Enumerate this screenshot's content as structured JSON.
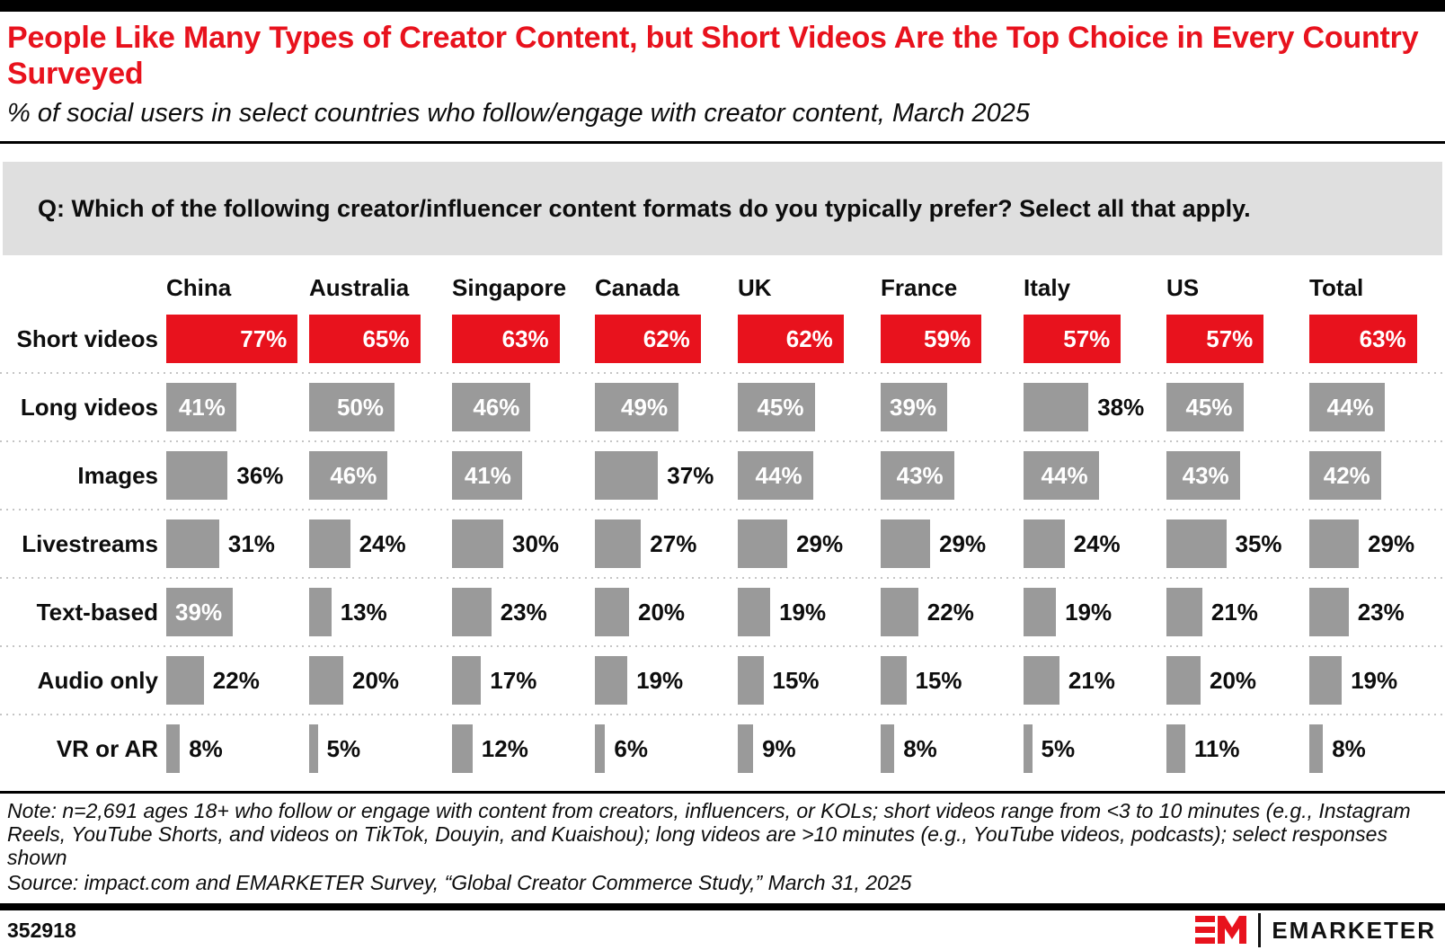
{
  "page": {
    "title": "People Like Many Types of Creator Content, but Short Videos Are the Top Choice in Every Country Surveyed",
    "subtitle": "% of social users in select countries who follow/engage with creator content, March 2025",
    "question": "Q: Which of the following creator/influencer content formats do you typically prefer? Select all that apply.",
    "note": "Note: n=2,691 ages 18+ who follow or engage with content from creators, influencers, or KOLs; short videos range from <3 to 10 minutes (e.g., Instagram Reels, YouTube Shorts, and videos on TikTok, Douyin, and Kuaishou); long videos are >10 minutes (e.g., YouTube videos, podcasts); select responses shown",
    "source": "Source: impact.com and EMARKETER Survey, “Global Creator Commerce Study,” March 31, 2025",
    "chart_id": "352918",
    "brand": "EMARKETER"
  },
  "colors": {
    "accent_red": "#E8121D",
    "bar_gray": "#9A9A9A",
    "question_bg": "#DFDFDF",
    "separator_gray": "#C5C5C5",
    "text_black": "#0D0D0D"
  },
  "chart_data": {
    "type": "bar",
    "orientation": "horizontal",
    "unit": "%",
    "title": "People Like Many Types of Creator Content, but Short Videos Are the Top Choice in Every Country Surveyed",
    "subtitle": "% of social users in select countries who follow/engage with creator content, March 2025",
    "categories": [
      "China",
      "Australia",
      "Singapore",
      "Canada",
      "UK",
      "France",
      "Italy",
      "US",
      "Total"
    ],
    "rows": [
      {
        "label": "Short videos",
        "highlight": true,
        "values": [
          77,
          65,
          63,
          62,
          62,
          59,
          57,
          57,
          63
        ]
      },
      {
        "label": "Long videos",
        "highlight": false,
        "values": [
          41,
          50,
          46,
          49,
          45,
          39,
          38,
          45,
          44
        ]
      },
      {
        "label": "Images",
        "highlight": false,
        "values": [
          36,
          46,
          41,
          37,
          44,
          43,
          44,
          43,
          42
        ]
      },
      {
        "label": "Livestreams",
        "highlight": false,
        "values": [
          31,
          24,
          30,
          27,
          29,
          29,
          24,
          35,
          29
        ]
      },
      {
        "label": "Text-based",
        "highlight": false,
        "values": [
          39,
          13,
          23,
          20,
          19,
          22,
          19,
          21,
          23
        ]
      },
      {
        "label": "Audio only",
        "highlight": false,
        "values": [
          22,
          20,
          17,
          19,
          15,
          15,
          21,
          20,
          19
        ]
      },
      {
        "label": "VR or AR",
        "highlight": false,
        "values": [
          8,
          5,
          12,
          6,
          9,
          8,
          5,
          11,
          8
        ]
      }
    ],
    "value_range": [
      0,
      100
    ],
    "inside_label_min": 39,
    "legend": "none",
    "grid": "dotted row separators"
  }
}
